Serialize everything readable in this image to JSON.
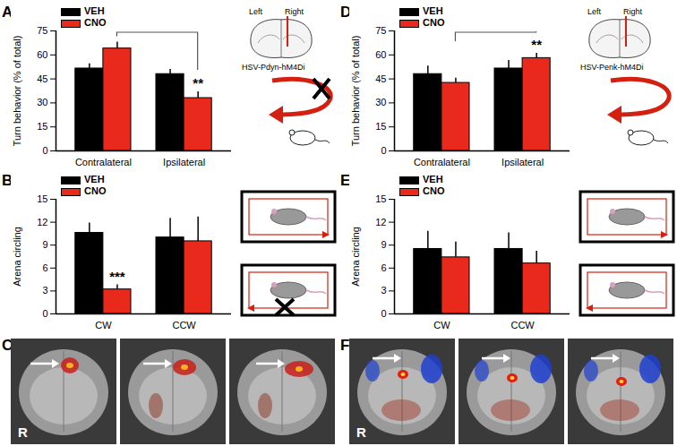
{
  "chart_data": [
    {
      "type": "bar",
      "title": "A",
      "ylabel": "Turn behavior (% of total)",
      "categories": [
        "Contralateral",
        "Ipsilateral"
      ],
      "series": [
        {
          "name": "VEH",
          "color": "#000000",
          "values": [
            51.5,
            48
          ],
          "errors": [
            3,
            3
          ],
          "significance": [
            null,
            null
          ]
        },
        {
          "name": "CNO",
          "color": "#e8291c",
          "values": [
            64,
            33
          ],
          "errors": [
            4,
            4
          ],
          "significance": [
            null,
            "**"
          ]
        }
      ],
      "ylim": [
        0,
        75
      ],
      "yticks": [
        0,
        15,
        30,
        45,
        60,
        75
      ],
      "legend": "top-left",
      "annotations": [
        "Left",
        "Right",
        "HSV-Pdyn-hM4Di"
      ]
    },
    {
      "type": "bar",
      "title": "B",
      "ylabel": "Arena circling",
      "categories": [
        "CW",
        "CCW"
      ],
      "series": [
        {
          "name": "VEH",
          "color": "#000000",
          "values": [
            10.6,
            10
          ],
          "errors": [
            1.3,
            2.5
          ],
          "significance": [
            null,
            null
          ]
        },
        {
          "name": "CNO",
          "color": "#e8291c",
          "values": [
            3.2,
            9.5
          ],
          "errors": [
            0.6,
            3.2
          ],
          "significance": [
            "***",
            null
          ]
        }
      ],
      "ylim": [
        0,
        15
      ],
      "yticks": [
        0,
        3,
        6,
        9,
        12,
        15
      ],
      "legend": "top-left"
    },
    {
      "type": "bar",
      "title": "D",
      "ylabel": "Turn behavior (% of total)",
      "categories": [
        "Contralateral",
        "Ipsilateral"
      ],
      "series": [
        {
          "name": "VEH",
          "color": "#000000",
          "values": [
            48,
            51.5
          ],
          "errors": [
            5,
            5
          ],
          "significance": [
            null,
            null
          ]
        },
        {
          "name": "CNO",
          "color": "#e8291c",
          "values": [
            42.5,
            58
          ],
          "errors": [
            3,
            3
          ],
          "significance": [
            null,
            "**"
          ]
        }
      ],
      "ylim": [
        0,
        75
      ],
      "yticks": [
        0,
        15,
        30,
        45,
        60,
        75
      ],
      "legend": "top-left",
      "annotations": [
        "Left",
        "Right",
        "HSV-Penk-hM4Di"
      ]
    },
    {
      "type": "bar",
      "title": "E",
      "ylabel": "Arena circling",
      "categories": [
        "CW",
        "CCW"
      ],
      "series": [
        {
          "name": "VEH",
          "color": "#000000",
          "values": [
            8.5,
            8.5
          ],
          "errors": [
            2.3,
            2.1
          ],
          "significance": [
            null,
            null
          ]
        },
        {
          "name": "CNO",
          "color": "#e8291c",
          "values": [
            7.4,
            6.6
          ],
          "errors": [
            2,
            1.6
          ],
          "significance": [
            null,
            null
          ]
        }
      ],
      "ylim": [
        0,
        15
      ],
      "yticks": [
        0,
        3,
        6,
        9,
        12,
        15
      ],
      "legend": "top-left"
    }
  ],
  "images": [
    {
      "title": "C",
      "annotations": [
        "R"
      ]
    },
    {
      "title": "F",
      "annotations": [
        "R"
      ]
    }
  ]
}
